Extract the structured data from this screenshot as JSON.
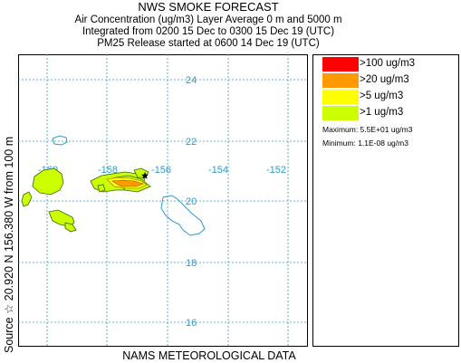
{
  "header": {
    "title": "NWS SMOKE FORECAST",
    "line1": "Air Concentration (ug/m3) Layer Average    0 m and  5000 m",
    "line2": "Integrated from 0200 15 Dec to 0300 15 Dec 19 (UTC)",
    "line3": "PM25 Release started at 0600 14 Dec 19 (UTC)"
  },
  "side_label": "Source ☆  20.920 N 156.380  W       from  100 m",
  "footer": "NAMS METEOROLOGICAL DATA",
  "map": {
    "latitudes": [
      "24",
      "22",
      "20",
      "18",
      "16"
    ],
    "longitudes": [
      "-160",
      "-158",
      "-156",
      "-154",
      "-152"
    ],
    "grid_color": "#3399cc",
    "coast_color": "#3399cc",
    "source_marker": "star-icon"
  },
  "legend": {
    "items": [
      {
        "label": ">100 ug/m3",
        "color": "#ff0000"
      },
      {
        "label": ">20 ug/m3",
        "color": "#ff9900"
      },
      {
        "label": ">5 ug/m3",
        "color": "#ffff00"
      },
      {
        "label": ">1 ug/m3",
        "color": "#ccff00"
      }
    ],
    "maximum": "Maximum: 5.5E+01 ug/m3",
    "minimum": "Minimum: 1.1E-08 ug/m3"
  }
}
